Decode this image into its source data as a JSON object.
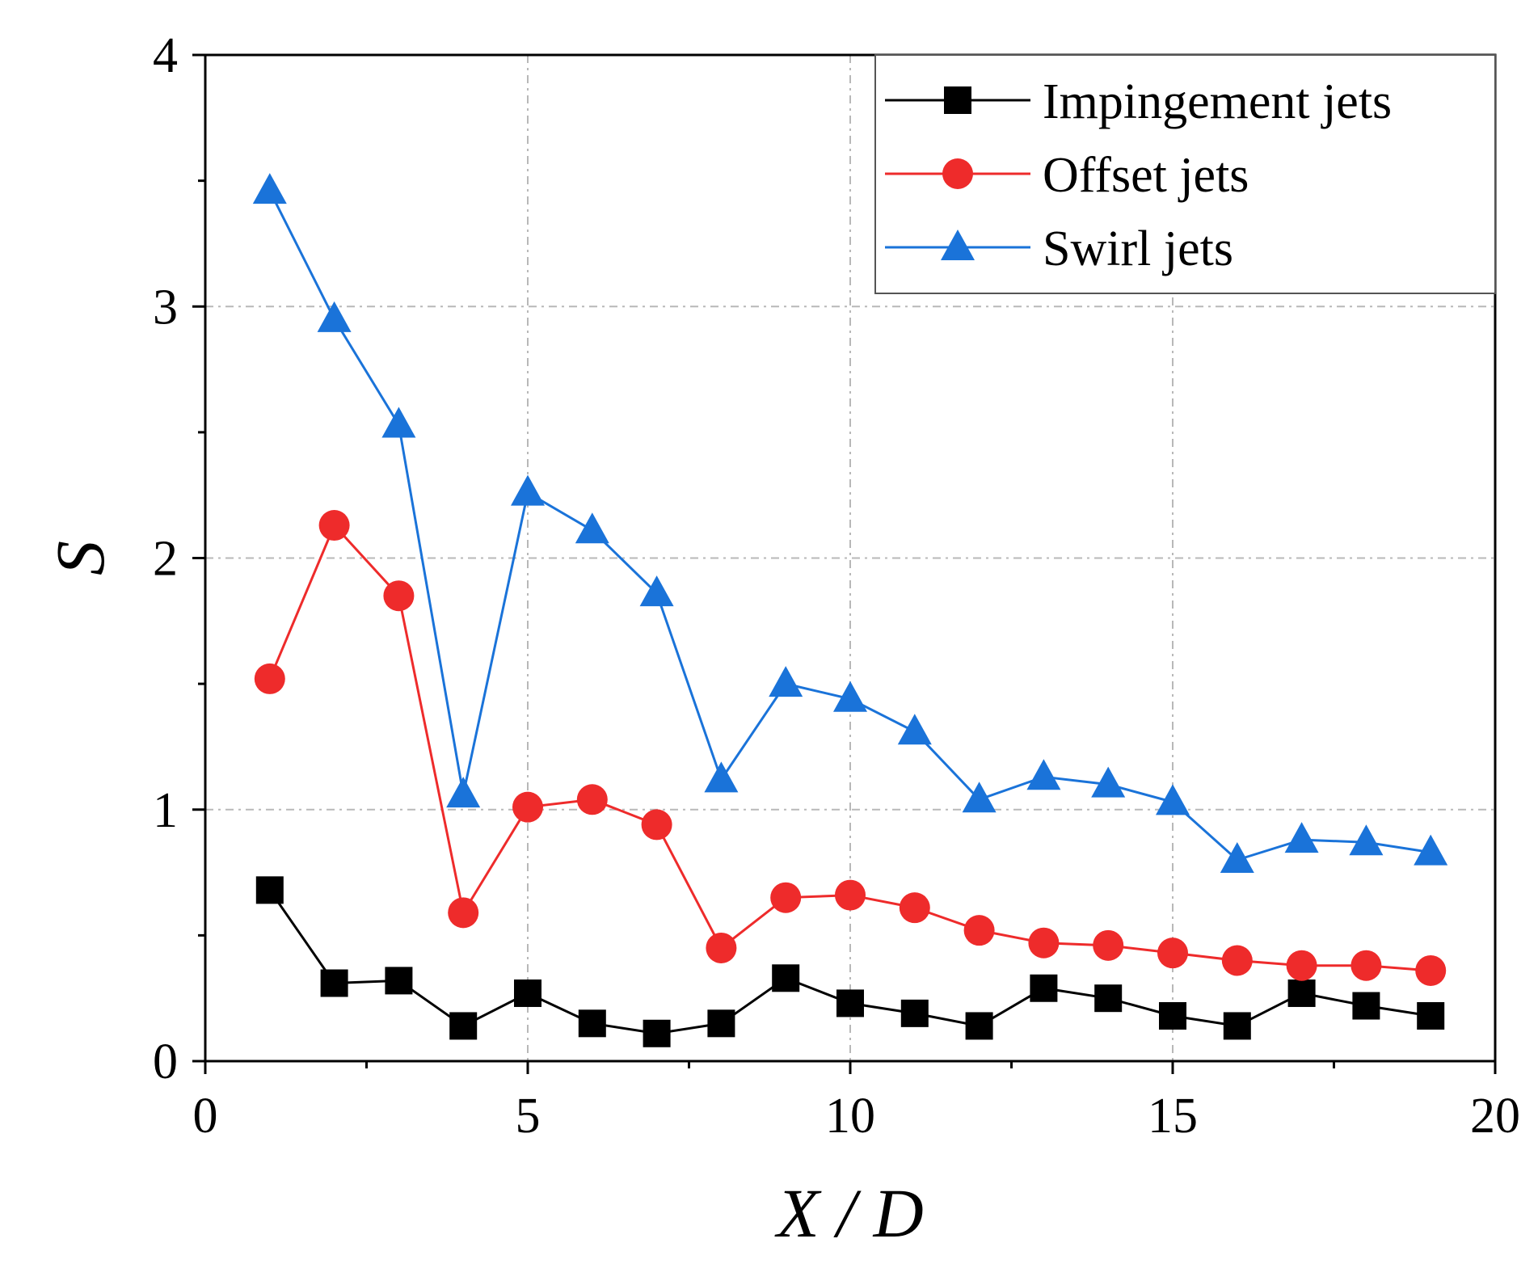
{
  "chart_data": {
    "type": "line",
    "xlabel": "X / D",
    "ylabel": "S",
    "xlim": [
      0,
      20
    ],
    "ylim": [
      0,
      4
    ],
    "xticks": [
      0,
      5,
      10,
      15,
      20
    ],
    "yticks": [
      0,
      1,
      2,
      3,
      4
    ],
    "grid": true,
    "legend_position": "top-right",
    "x": [
      1,
      2,
      3,
      4,
      5,
      6,
      7,
      8,
      9,
      10,
      11,
      12,
      13,
      14,
      15,
      16,
      17,
      18,
      19
    ],
    "series": [
      {
        "name": "Impingement jets",
        "color": "#000000",
        "marker": "square",
        "values": [
          0.68,
          0.31,
          0.32,
          0.14,
          0.27,
          0.15,
          0.11,
          0.15,
          0.33,
          0.23,
          0.19,
          0.14,
          0.29,
          0.25,
          0.18,
          0.14,
          0.27,
          0.22,
          0.18
        ]
      },
      {
        "name": "Offset jets",
        "color": "#ee2b2b",
        "marker": "circle",
        "values": [
          1.52,
          2.13,
          1.85,
          0.59,
          1.01,
          1.04,
          0.94,
          0.45,
          0.65,
          0.66,
          0.61,
          0.52,
          0.47,
          0.46,
          0.43,
          0.4,
          0.38,
          0.38,
          0.36
        ]
      },
      {
        "name": "Swirl jets",
        "color": "#1a73d9",
        "marker": "triangle",
        "values": [
          3.46,
          2.95,
          2.53,
          1.06,
          2.26,
          2.11,
          1.86,
          1.12,
          1.5,
          1.44,
          1.31,
          1.04,
          1.13,
          1.1,
          1.03,
          0.8,
          0.88,
          0.87,
          0.83
        ]
      }
    ]
  }
}
